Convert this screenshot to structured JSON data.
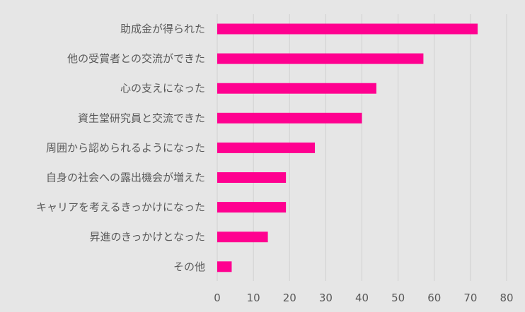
{
  "chart_data": {
    "type": "bar",
    "orientation": "horizontal",
    "categories": [
      "助成金が得られた",
      "他の受賞者との交流ができた",
      "心の支えになった",
      "資生堂研究員と交流できた",
      "周囲から認められるようになった",
      "自身の社会への露出機会が増えた",
      "キャリアを考えるきっかけになった",
      "昇進のきっかけとなった",
      "その他"
    ],
    "values": [
      72,
      57,
      44,
      40,
      27,
      19,
      19,
      14,
      4
    ],
    "xlim": [
      0,
      80
    ],
    "xticks": [
      "0",
      "10",
      "20",
      "30",
      "40",
      "50",
      "60",
      "70",
      "80"
    ],
    "tick_values": [
      0,
      10,
      20,
      30,
      40,
      50,
      60,
      70,
      80
    ],
    "grid": true,
    "bar_color": "#ff0090",
    "background_color": "#e6e6e6",
    "gridline_color": "#d0d0d0",
    "text_color": "#595959"
  }
}
